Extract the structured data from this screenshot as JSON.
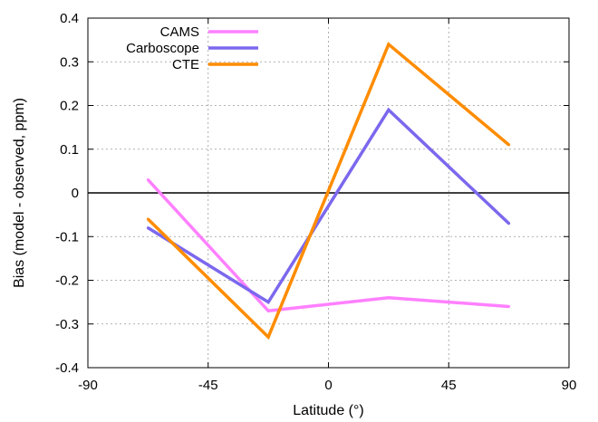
{
  "chart_data": {
    "type": "line",
    "title": "",
    "xlabel": "Latitude (°)",
    "ylabel": "Bias (model - observed, ppm)",
    "xlim": [
      -90,
      90
    ],
    "ylim": [
      -0.4,
      0.4
    ],
    "xticks": [
      -90,
      -45,
      0,
      45,
      90
    ],
    "yticks": [
      -0.4,
      -0.3,
      -0.2,
      -0.1,
      0,
      0.1,
      0.2,
      0.3,
      0.4
    ],
    "grid": true,
    "zero_line": true,
    "legend_position": "top-left",
    "x": [
      -67.5,
      -22.5,
      22.5,
      67.5
    ],
    "series": [
      {
        "name": "CAMS",
        "color": "#ff80ff",
        "values": [
          0.03,
          -0.27,
          -0.24,
          -0.26
        ]
      },
      {
        "name": "Carboscope",
        "color": "#7b68ee",
        "values": [
          -0.08,
          -0.25,
          0.19,
          -0.07
        ]
      },
      {
        "name": "CTE",
        "color": "#ff8c00",
        "values": [
          -0.06,
          -0.33,
          0.34,
          0.11
        ]
      }
    ]
  }
}
